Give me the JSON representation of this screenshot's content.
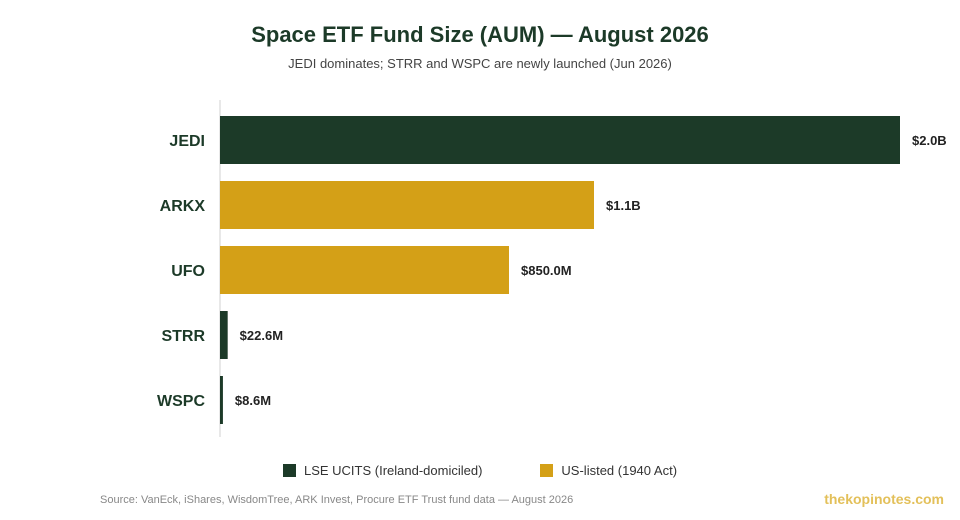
{
  "chart_data": {
    "type": "bar",
    "orientation": "horizontal",
    "title": "Space ETF Fund Size (AUM) — August 2026",
    "subtitle": "JEDI dominates; STRR and WSPC are newly launched (Jun 2026)",
    "categories": [
      "JEDI",
      "ARKX",
      "UFO",
      "STRR",
      "WSPC"
    ],
    "values": [
      2000,
      1100,
      850,
      22.6,
      8.6
    ],
    "value_unit": "USD millions",
    "data_labels": [
      "$2.0B",
      "$1.1B",
      "$850.0M",
      "$22.6M",
      "$8.6M"
    ],
    "groups": [
      "LSE UCITS (Ireland-domiciled)",
      "US-listed (1940 Act)",
      "US-listed (1940 Act)",
      "LSE UCITS (Ireland-domiciled)",
      "LSE UCITS (Ireland-domiciled)"
    ],
    "xlim": [
      0,
      2000
    ],
    "grid": false,
    "legend": {
      "placement": "bottom",
      "entries": [
        {
          "label": "LSE UCITS (Ireland-domiciled)",
          "color": "#1c3a28"
        },
        {
          "label": "US-listed (1940 Act)",
          "color": "#d4a017"
        }
      ]
    }
  },
  "source": "Source: VanEck, iShares, WisdomTree, ARK Invest, Procure ETF Trust fund data — August 2026",
  "brand": "thekopinotes.com"
}
